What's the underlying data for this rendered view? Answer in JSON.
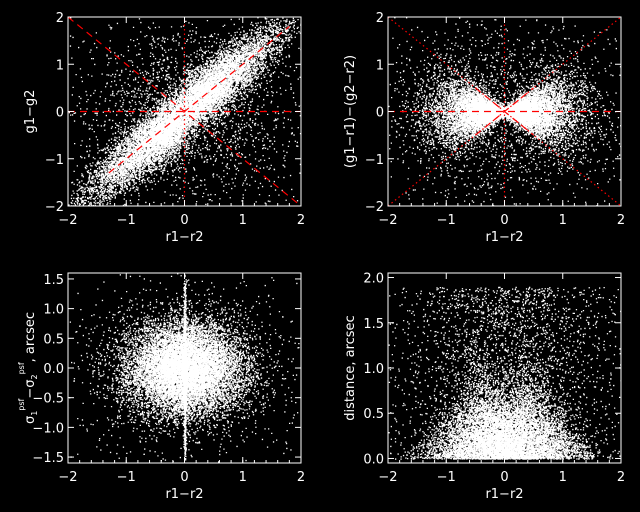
{
  "chart_data": [
    {
      "type": "scatter",
      "panel": "top-left",
      "xlabel": "r1−r2",
      "ylabel": "g1−g2",
      "xlim": [
        -2,
        2
      ],
      "ylim": [
        -2,
        2
      ],
      "xticks": [
        "−2",
        "−1",
        "0",
        "1",
        "2"
      ],
      "yticks": [
        "−2",
        "−1",
        "0",
        "1",
        "2"
      ],
      "point_color": "#ffffff",
      "line_color": "#ff0000",
      "reference_lines": [
        {
          "style": "dashed",
          "x": [
            -2,
            2
          ],
          "y": [
            0,
            0
          ]
        },
        {
          "style": "dashed",
          "x": [
            -1.3,
            1.8
          ],
          "y": [
            -1.3,
            1.8
          ]
        },
        {
          "style": "dashed",
          "x": [
            -2,
            2
          ],
          "y": [
            2,
            -2
          ]
        },
        {
          "style": "dotted",
          "x": [
            0,
            0
          ],
          "y": [
            -2,
            2
          ]
        }
      ],
      "cloud": {
        "shape": "butterfly-diagonal",
        "density": "very high"
      }
    },
    {
      "type": "scatter",
      "panel": "top-right",
      "xlabel": "r1−r2",
      "ylabel": "(g1−r1)−(g2−r2)",
      "xlim": [
        -2,
        2
      ],
      "ylim": [
        -2,
        2
      ],
      "xticks": [
        "−2",
        "−1",
        "0",
        "1",
        "2"
      ],
      "yticks": [
        "−2",
        "−1",
        "0",
        "1",
        "2"
      ],
      "point_color": "#ffffff",
      "line_color": "#ff0000",
      "reference_lines": [
        {
          "style": "dashed",
          "x": [
            -2,
            2
          ],
          "y": [
            0,
            0
          ]
        },
        {
          "style": "dashed",
          "x": [
            -0.5,
            0.5
          ],
          "y": [
            0.5,
            -0.5
          ]
        },
        {
          "style": "dashed",
          "x": [
            -0.5,
            0.5
          ],
          "y": [
            -0.5,
            0.5
          ]
        },
        {
          "style": "dotted",
          "x": [
            -2,
            2
          ],
          "y": [
            -2,
            2
          ]
        },
        {
          "style": "dotted",
          "x": [
            -2,
            2
          ],
          "y": [
            2,
            -2
          ]
        },
        {
          "style": "dotted",
          "x": [
            0,
            0
          ],
          "y": [
            -2,
            2
          ]
        }
      ],
      "cloud": {
        "shape": "bowtie-horizontal",
        "density": "very high"
      }
    },
    {
      "type": "scatter",
      "panel": "bottom-left",
      "xlabel": "r1−r2",
      "ylabel_parts": [
        "σ",
        "1",
        "psf",
        "−σ",
        "2",
        "psf",
        ", arcsec"
      ],
      "xlim": [
        -2,
        2
      ],
      "ylim": [
        -1.6,
        1.6
      ],
      "xticks": [
        "−2",
        "−1",
        "0",
        "1",
        "2"
      ],
      "yticks": [
        "−1.5",
        "−1.0",
        "−0.5",
        "0.0",
        "0.5",
        "1.0",
        "1.5"
      ],
      "point_color": "#ffffff",
      "cloud": {
        "shape": "ellipse-with-vertical-spike",
        "density": "very high"
      }
    },
    {
      "type": "scatter",
      "panel": "bottom-right",
      "xlabel": "r1−r2",
      "ylabel": "distance, arcsec",
      "xlim": [
        -2,
        2
      ],
      "ylim": [
        -0.05,
        2.05
      ],
      "xticks": [
        "−2",
        "−1",
        "0",
        "1",
        "2"
      ],
      "yticks": [
        "0.0",
        "0.5",
        "1.0",
        "1.5",
        "2.0"
      ],
      "point_color": "#ffffff",
      "cloud": {
        "shape": "double-hump",
        "density": "very high"
      }
    }
  ]
}
